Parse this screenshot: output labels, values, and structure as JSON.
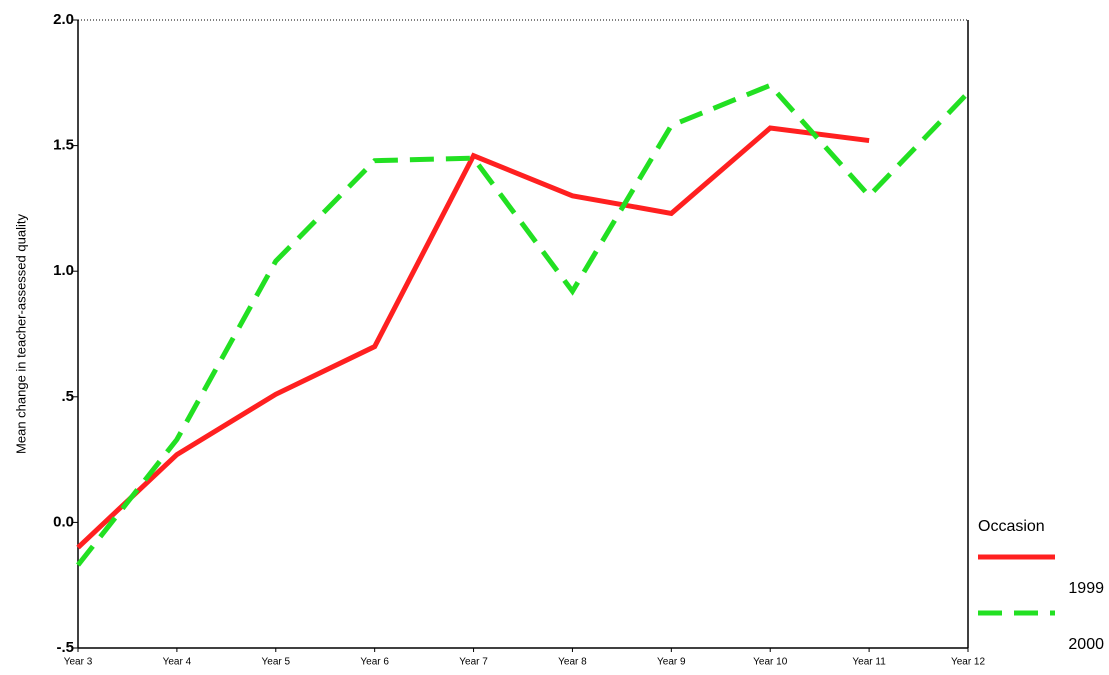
{
  "chart_data": {
    "type": "line",
    "y_label": "Mean change in teacher-assessed quality",
    "categories": [
      "Year 3",
      "Year 4",
      "Year 5",
      "Year 6",
      "Year 7",
      "Year 8",
      "Year 9",
      "Year 10",
      "Year 11",
      "Year 12"
    ],
    "legend_title": "Occasion",
    "series": [
      {
        "name": "1999",
        "color": "#ff2020",
        "line_style": "solid",
        "values": [
          -0.1,
          0.27,
          0.51,
          0.7,
          1.46,
          1.3,
          1.23,
          1.57,
          1.52,
          null
        ]
      },
      {
        "name": "2000",
        "color": "#22e022",
        "line_style": "dashed",
        "values": [
          -0.17,
          0.33,
          1.04,
          1.44,
          1.45,
          0.92,
          1.58,
          1.74,
          1.3,
          1.71
        ]
      }
    ],
    "ylim": [
      -0.5,
      2
    ],
    "yticks": [
      {
        "value": -0.5,
        "label": "-.5"
      },
      {
        "value": 0,
        "label": "0.0"
      },
      {
        "value": 0.5,
        "label": ".5"
      },
      {
        "value": 1,
        "label": "1.0"
      },
      {
        "value": 1.5,
        "label": "1.5"
      },
      {
        "value": 2,
        "label": "2.0"
      }
    ],
    "legend": "right-bottom"
  }
}
